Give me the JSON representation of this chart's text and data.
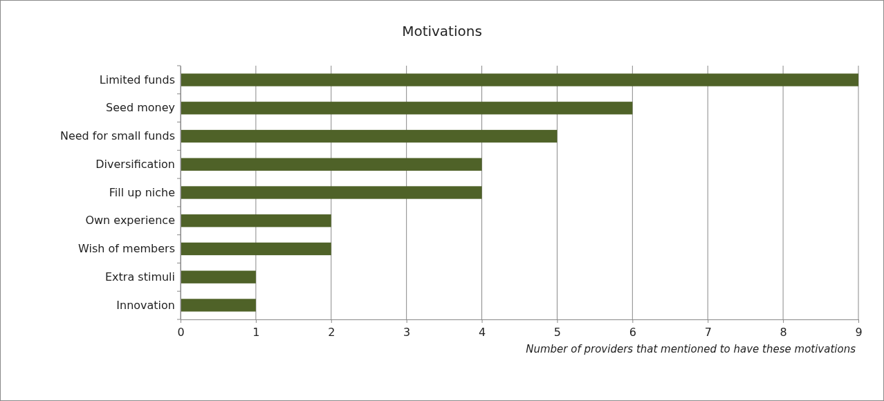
{
  "chart_data": {
    "type": "bar",
    "orientation": "horizontal",
    "title": "Motivations",
    "xlabel": "Number of providers that mentioned to have these motivations",
    "categories": [
      "Limited funds",
      "Seed money",
      "Need for small funds",
      "Diversification",
      "Fill up niche",
      "Own experience",
      "Wish of members",
      "Extra stimuli",
      "Innovation"
    ],
    "values": [
      9,
      6,
      5,
      4,
      4,
      2,
      2,
      1,
      1
    ],
    "color": "#4f6228",
    "xlim": [
      0,
      9
    ],
    "xticks": [
      0,
      1,
      2,
      3,
      4,
      5,
      6,
      7,
      8,
      9
    ],
    "grid": "x"
  }
}
